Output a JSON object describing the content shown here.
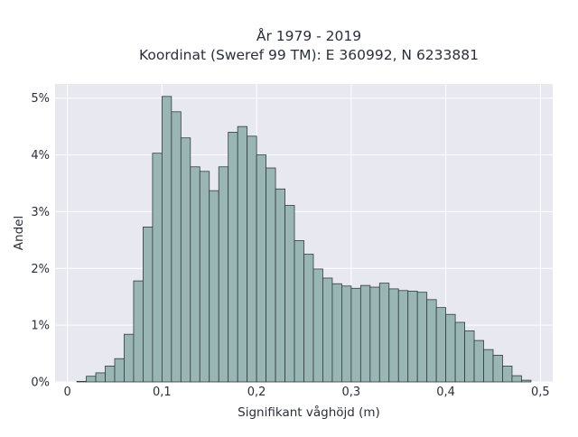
{
  "chart_data": {
    "type": "bar",
    "title": "År 1979 - 2019",
    "subtitle": "Koordinat (Sweref 99 TM): E 360992, N 6233881",
    "xlabel": "Signifikant våghöjd (m)",
    "ylabel": "Andel",
    "xlim": [
      -0.013,
      0.513
    ],
    "ylim": [
      0,
      5.25
    ],
    "x_ticks": [
      0,
      0.1,
      0.2,
      0.3,
      0.4,
      0.5
    ],
    "x_tick_labels": [
      "0",
      "0,1",
      "0,2",
      "0,3",
      "0,4",
      "0,5"
    ],
    "y_ticks": [
      0,
      1,
      2,
      3,
      4,
      5
    ],
    "y_tick_labels": [
      "0%",
      "1%",
      "2%",
      "3%",
      "4%",
      "5%"
    ],
    "grid": true,
    "bin_width": 0.01,
    "bin_starts": [
      0.01,
      0.02,
      0.03,
      0.04,
      0.05,
      0.06,
      0.07,
      0.08,
      0.09,
      0.1,
      0.11,
      0.12,
      0.13,
      0.14,
      0.15,
      0.16,
      0.17,
      0.18,
      0.19,
      0.2,
      0.21,
      0.22,
      0.23,
      0.24,
      0.25,
      0.26,
      0.27,
      0.28,
      0.29,
      0.3,
      0.31,
      0.32,
      0.33,
      0.34,
      0.35,
      0.36,
      0.37,
      0.38,
      0.39,
      0.4,
      0.41,
      0.42,
      0.43,
      0.44,
      0.45,
      0.46,
      0.47,
      0.48
    ],
    "values": [
      0.01,
      0.1,
      0.16,
      0.28,
      0.41,
      0.84,
      1.78,
      2.73,
      4.03,
      5.03,
      4.76,
      4.3,
      3.79,
      3.71,
      3.37,
      3.79,
      4.4,
      4.5,
      4.33,
      4.0,
      3.77,
      3.4,
      3.11,
      2.49,
      2.25,
      1.99,
      1.83,
      1.73,
      1.69,
      1.65,
      1.7,
      1.67,
      1.74,
      1.64,
      1.61,
      1.6,
      1.58,
      1.45,
      1.31,
      1.19,
      1.05,
      0.9,
      0.73,
      0.57,
      0.47,
      0.28,
      0.11,
      0.03
    ],
    "colors": {
      "bar_fill": "#9ab6b4",
      "bar_stroke": "#2f3d3c",
      "plot_bg": "#e8e8f1",
      "grid": "#ffffff",
      "text": "#2a2f3a"
    }
  }
}
